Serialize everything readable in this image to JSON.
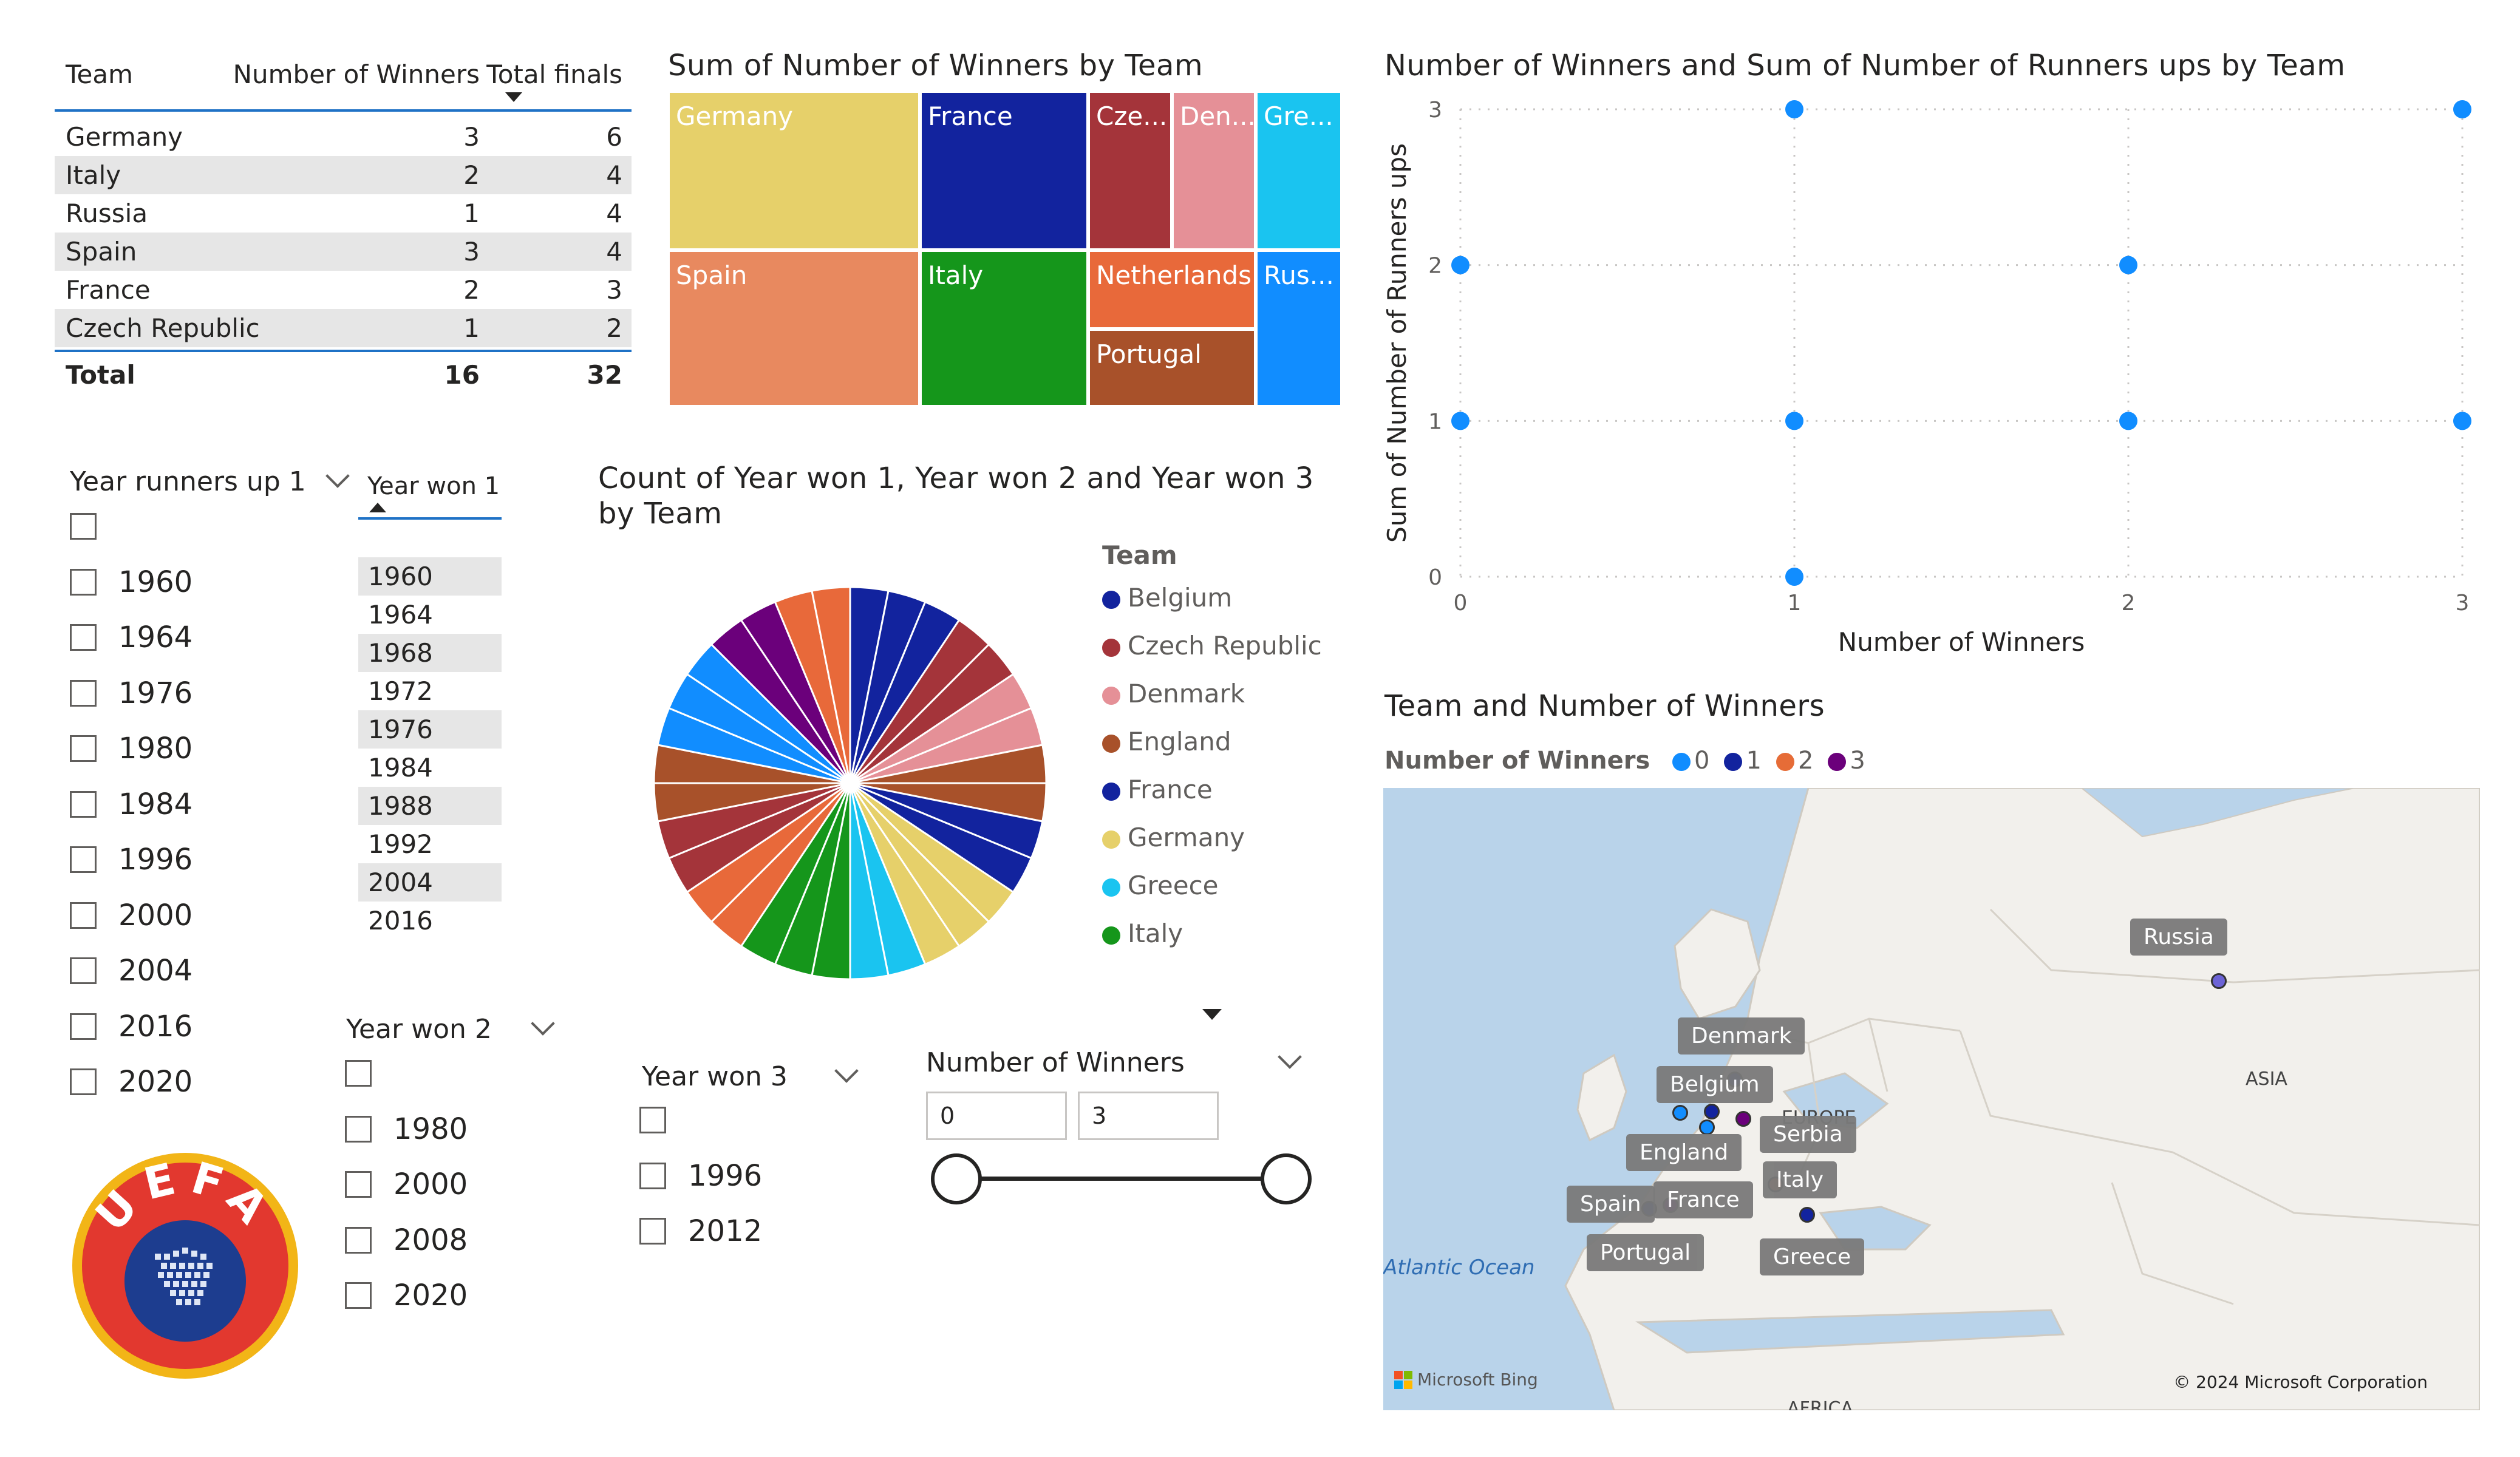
{
  "table": {
    "headers": {
      "team": "Team",
      "winners": "Number of Winners",
      "finals": "Total finals"
    },
    "rows": [
      {
        "team": "Germany",
        "winners": "3",
        "finals": "6"
      },
      {
        "team": "Italy",
        "winners": "2",
        "finals": "4"
      },
      {
        "team": "Russia",
        "winners": "1",
        "finals": "4"
      },
      {
        "team": "Spain",
        "winners": "3",
        "finals": "4"
      },
      {
        "team": "France",
        "winners": "2",
        "finals": "3"
      },
      {
        "team": "Czech Republic",
        "winners": "1",
        "finals": "2"
      }
    ],
    "total": {
      "label": "Total",
      "winners": "16",
      "finals": "32"
    }
  },
  "treemap": {
    "title": "Sum of Number of Winners by Team",
    "cells": [
      "Germany",
      "France",
      "Cze...",
      "Den...",
      "Gre...",
      "Spain",
      "Italy",
      "Netherlands",
      "Portugal",
      "Rus..."
    ],
    "colors": [
      "#e6d06a",
      "#12239e",
      "#a4343a",
      "#e59097",
      "#1ac4f0",
      "#e8895f",
      "#15961b",
      "#e8693a",
      "#a8512a",
      "#118dff"
    ]
  },
  "slicer_runners_up": {
    "title": "Year runners up 1",
    "items": [
      "",
      "1960",
      "1964",
      "1976",
      "1980",
      "1984",
      "1996",
      "2000",
      "2004",
      "2016",
      "2020"
    ]
  },
  "slicer_year_won1": {
    "title": "Year won 1",
    "items": [
      "1960",
      "1964",
      "1968",
      "1972",
      "1976",
      "1984",
      "1988",
      "1992",
      "2004",
      "2016"
    ]
  },
  "slicer_year_won2": {
    "title": "Year won 2",
    "items": [
      "",
      "1980",
      "2000",
      "2008",
      "2020"
    ]
  },
  "slicer_year_won3": {
    "title": "Year won 3",
    "items": [
      "",
      "1996",
      "2012"
    ]
  },
  "slicer_num_winners": {
    "title": "Number of Winners",
    "min_value": "0",
    "max_value": "3"
  },
  "pie": {
    "title_line1": "Count of Year won 1, Year won 2 and Year won 3",
    "title_line2": "by Team",
    "legend_title": "Team",
    "legend": [
      {
        "name": "Belgium",
        "color": "#12239e"
      },
      {
        "name": "Czech Republic",
        "color": "#a4343a"
      },
      {
        "name": "Denmark",
        "color": "#e59097"
      },
      {
        "name": "England",
        "color": "#a8512a"
      },
      {
        "name": "France",
        "color": "#12239e"
      },
      {
        "name": "Germany",
        "color": "#e6d06a"
      },
      {
        "name": "Greece",
        "color": "#1ac4f0"
      },
      {
        "name": "Italy",
        "color": "#15961b"
      }
    ]
  },
  "scatter": {
    "title": "Number of Winners and Sum of Number of Runners ups by Team",
    "xlabel": "Number of Winners",
    "ylabel": "Sum of Number of Runners ups",
    "x_ticks": [
      "0",
      "1",
      "2",
      "3"
    ],
    "y_ticks": [
      "0",
      "1",
      "2",
      "3"
    ]
  },
  "chart_data": {
    "type": "scatter",
    "title": "Number of Winners and Sum of Number of Runners ups by Team",
    "xlabel": "Number of Winners",
    "ylabel": "Sum of Number of Runners ups",
    "xlim": [
      0,
      3
    ],
    "ylim": [
      0,
      3
    ],
    "points": [
      {
        "x": 0,
        "y": 2
      },
      {
        "x": 0,
        "y": 1
      },
      {
        "x": 1,
        "y": 3
      },
      {
        "x": 1,
        "y": 1
      },
      {
        "x": 1,
        "y": 0
      },
      {
        "x": 2,
        "y": 2
      },
      {
        "x": 2,
        "y": 1
      },
      {
        "x": 3,
        "y": 3
      },
      {
        "x": 3,
        "y": 1
      }
    ],
    "color": "#118dff"
  },
  "map": {
    "title": "Team and Number of Winners",
    "legend_title": "Number of Winners",
    "legend": [
      {
        "label": "0",
        "color": "#118dff"
      },
      {
        "label": "1",
        "color": "#12239e"
      },
      {
        "label": "2",
        "color": "#e66c37"
      },
      {
        "label": "3",
        "color": "#6b007b"
      }
    ],
    "labels": [
      "Russia",
      "Denmark",
      "Belgium",
      "England",
      "Serbia",
      "Italy",
      "Spain",
      "France",
      "Portugal",
      "Greece"
    ],
    "region_labels": [
      "EUROPE",
      "ASIA",
      "AFRICA"
    ],
    "ocean": "Atlantic Ocean",
    "attribution": "Microsoft Bing",
    "copyright": "© 2024 Microsoft Corporation"
  },
  "logo": {
    "text": "UEFA"
  }
}
